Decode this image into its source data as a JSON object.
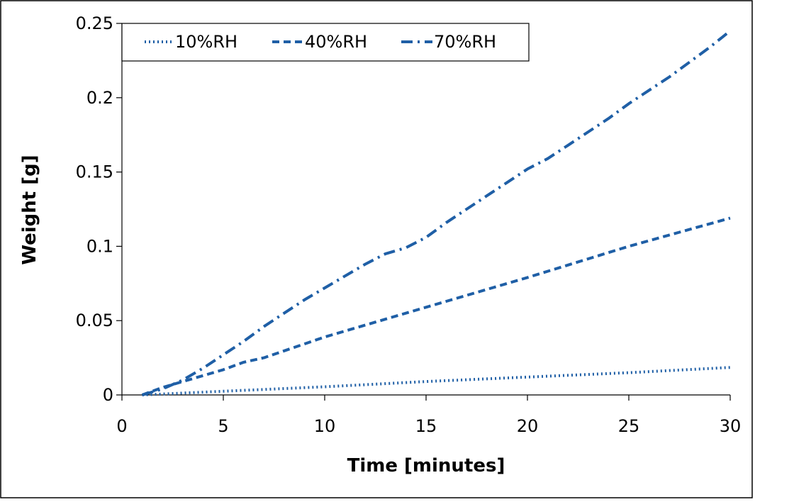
{
  "chart_data": {
    "type": "line",
    "title": "",
    "xlabel": "Time [minutes]",
    "ylabel": "Weight [g]",
    "xlim": [
      0,
      30
    ],
    "ylim": [
      0,
      0.25
    ],
    "x_ticks": [
      0,
      5,
      10,
      15,
      20,
      25,
      30
    ],
    "x_tick_labels": [
      "0",
      "5",
      "10",
      "15",
      "20",
      "25",
      "30"
    ],
    "y_ticks": [
      0,
      0.05,
      0.1,
      0.15,
      0.2,
      0.25
    ],
    "y_tick_labels": [
      "0",
      "0.05",
      "0.1",
      "0.15",
      "0.2",
      "0.25"
    ],
    "grid": false,
    "legend_position": "top-left",
    "series_color": "#1f5fa6",
    "series": [
      {
        "name": "10%RH",
        "style": "dotted",
        "x": [
          1,
          5,
          10,
          15,
          20,
          25,
          30
        ],
        "y": [
          0.0,
          0.0025,
          0.0055,
          0.009,
          0.012,
          0.015,
          0.0185
        ]
      },
      {
        "name": "40%RH",
        "style": "dashed",
        "x": [
          1,
          2,
          3,
          4,
          5,
          6,
          7,
          10,
          15,
          20,
          25,
          30
        ],
        "y": [
          0.0,
          0.005,
          0.009,
          0.013,
          0.017,
          0.022,
          0.025,
          0.039,
          0.059,
          0.079,
          0.1,
          0.119
        ]
      },
      {
        "name": "70%RH",
        "style": "dashdot",
        "x": [
          1,
          2,
          3,
          4,
          5,
          6,
          7,
          8,
          9,
          10,
          11,
          12,
          13,
          14,
          15,
          16,
          17,
          18,
          19,
          20,
          21,
          22,
          23,
          24,
          25,
          26,
          27,
          28,
          29,
          30
        ],
        "y": [
          0.0,
          0.004,
          0.01,
          0.018,
          0.027,
          0.036,
          0.046,
          0.055,
          0.064,
          0.072,
          0.08,
          0.088,
          0.095,
          0.099,
          0.106,
          0.116,
          0.125,
          0.134,
          0.143,
          0.152,
          0.159,
          0.168,
          0.177,
          0.186,
          0.196,
          0.205,
          0.214,
          0.224,
          0.234,
          0.245
        ]
      }
    ]
  }
}
